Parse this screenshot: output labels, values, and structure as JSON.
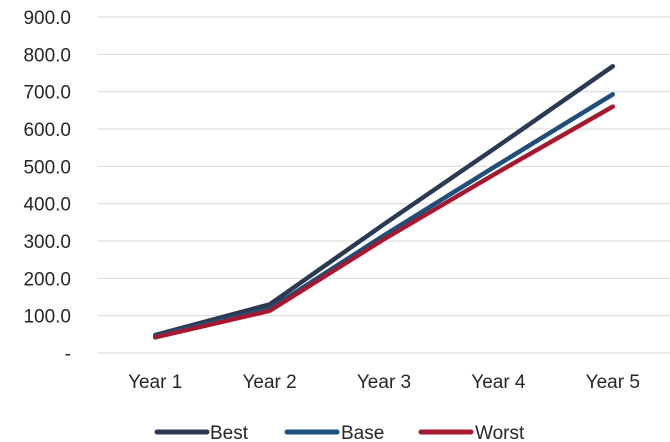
{
  "chart_data": {
    "type": "line",
    "categories": [
      "Year 1",
      "Year 2",
      "Year 3",
      "Year 4",
      "Year 5"
    ],
    "series": [
      {
        "name": "Best",
        "values": [
          48,
          130,
          345,
          555,
          768
        ],
        "color": "#2b3a52"
      },
      {
        "name": "Base",
        "values": [
          45,
          118,
          315,
          505,
          693
        ],
        "color": "#1f4e79"
      },
      {
        "name": "Worst",
        "values": [
          42,
          113,
          305,
          485,
          660
        ],
        "color": "#a5192f"
      }
    ],
    "yticks": [
      {
        "value": 0,
        "label": "-"
      },
      {
        "value": 100,
        "label": "100.0"
      },
      {
        "value": 200,
        "label": "200.0"
      },
      {
        "value": 300,
        "label": "300.0"
      },
      {
        "value": 400,
        "label": "400.0"
      },
      {
        "value": 500,
        "label": "500.0"
      },
      {
        "value": 600,
        "label": "600.0"
      },
      {
        "value": 700,
        "label": "700.0"
      },
      {
        "value": 800,
        "label": "800.0"
      },
      {
        "value": 900,
        "label": "900.0"
      }
    ],
    "ylim": [
      0,
      900
    ],
    "grid": true,
    "legend": "bottom",
    "gridline_color": "#d9d9d9"
  }
}
